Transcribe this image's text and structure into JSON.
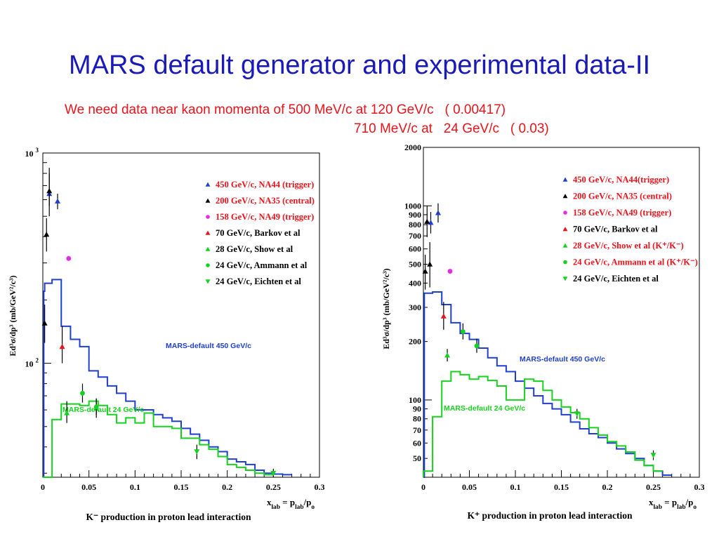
{
  "slide": {
    "title": "MARS default generator  and experimental data-II",
    "note_line1": "We need data near kaon momenta of 500 MeV/c at 120 GeV/c   ( 0.00417)",
    "note_line2": "710 MeV/c at   24 GeV/c   ( 0.03)"
  },
  "chart_data": [
    {
      "type": "scatter",
      "title": "K⁻ production in proton lead interaction",
      "xlabel": "x_lab = p_lab/p_o",
      "ylabel": "Ed³σ/dp³  (mb/GeV²/c³)",
      "xlim": [
        0,
        0.3
      ],
      "ylim": [
        28.7,
        1000
      ],
      "log_y": true,
      "x_ticks": [
        "0",
        "0.05",
        "0.1",
        "0.15",
        "0.2",
        "0.25",
        "0.3"
      ],
      "y_ticks": [
        {
          "value": 1000,
          "base": "10",
          "exp": "3"
        },
        {
          "value": 100,
          "base": "10",
          "exp": "2"
        }
      ],
      "legend_position": "top-right",
      "legend": [
        {
          "label": "450 GeV/c, NA44 (trigger)",
          "color": "#1f3fd0",
          "marker": "triangle-up",
          "text_color": "#e8131b"
        },
        {
          "label": "200 GeV/c, NA35 (central)",
          "color": "#000000",
          "marker": "triangle-up",
          "text_color": "#e8131b"
        },
        {
          "label": "158 GeV/c, NA49 (trigger)",
          "color": "#e22be2",
          "marker": "circle",
          "text_color": "#e8131b"
        },
        {
          "label": "70 GeV/c, Barkov et al",
          "color": "#e8131b",
          "marker": "triangle-up",
          "text_color": "#000000"
        },
        {
          "label": "28 GeV/c, Show et al",
          "color": "#16d21e",
          "marker": "triangle-up",
          "text_color": "#000000"
        },
        {
          "label": "24 GeV/c, Ammann et al",
          "color": "#16d21e",
          "marker": "circle",
          "text_color": "#000000"
        },
        {
          "label": "24 GeV/c, Eichten et al",
          "color": "#16d21e",
          "marker": "triangle-down",
          "text_color": "#000000"
        }
      ],
      "series": [
        {
          "name": "450 GeV/c, NA44 (trigger)",
          "color": "#1f3fd0",
          "marker": "triangle-up",
          "points": [
            {
              "x": 0.007,
              "y": 640,
              "lo": 500,
              "hi": 850
            },
            {
              "x": 0.016,
              "y": 590,
              "lo": 540,
              "hi": 640
            }
          ]
        },
        {
          "name": "200 GeV/c, NA35 (central)",
          "color": "#000000",
          "marker": "triangle-up",
          "points": [
            {
              "x": 0.002,
              "y": 155,
              "lo": 125,
              "hi": 190
            },
            {
              "x": 0.004,
              "y": 410,
              "lo": 340,
              "hi": 490
            },
            {
              "x": 0.007,
              "y": 660,
              "lo": 560,
              "hi": 800
            }
          ]
        },
        {
          "name": "158 GeV/c, NA49 (trigger)",
          "color": "#e22be2",
          "marker": "circle",
          "points": [
            {
              "x": 0.028,
              "y": 315
            }
          ]
        },
        {
          "name": "70 GeV/c, Barkov et al",
          "color": "#e8131b",
          "marker": "triangle-up",
          "points": [
            {
              "x": 0.021,
              "y": 120,
              "lo": 100,
              "hi": 150
            }
          ]
        },
        {
          "name": "28 GeV/c, Show et al",
          "color": "#16d21e",
          "marker": "triangle-up",
          "points": [
            {
              "x": 0.026,
              "y": 58,
              "lo": 52,
              "hi": 66
            },
            {
              "x": 0.058,
              "y": 61,
              "lo": 55,
              "hi": 68
            }
          ]
        },
        {
          "name": "24 GeV/c, Ammann et al",
          "color": "#16d21e",
          "marker": "circle",
          "points": [
            {
              "x": 0.043,
              "y": 72,
              "lo": 65,
              "hi": 80
            },
            {
              "x": 0.058,
              "y": 62,
              "lo": 57,
              "hi": 68
            }
          ]
        },
        {
          "name": "24 GeV/c, Eichten et al",
          "color": "#16d21e",
          "marker": "triangle-down",
          "points": [
            {
              "x": 0.167,
              "y": 38,
              "lo": 35,
              "hi": 41
            },
            {
              "x": 0.25,
              "y": 30,
              "lo": 28.9,
              "hi": 31.5
            }
          ]
        }
      ],
      "curves": [
        {
          "name": "MARS-default 450 GeV/c",
          "label": "MARS-default 450 GeV/c",
          "color": "#1f3fd0",
          "edges": [
            0,
            0.001,
            0.002,
            0.01,
            0.02,
            0.03,
            0.04,
            0.05,
            0.06,
            0.07,
            0.08,
            0.09,
            0.1,
            0.11,
            0.12,
            0.13,
            0.14,
            0.15,
            0.16,
            0.17,
            0.18,
            0.19,
            0.2,
            0.21,
            0.22,
            0.23,
            0.24,
            0.25,
            0.26,
            0.27
          ],
          "values": [
            28.7,
            220,
            240,
            250,
            150,
            130,
            120,
            92,
            86,
            78,
            72,
            66,
            60,
            60,
            57,
            55,
            53,
            49,
            46,
            43,
            40,
            38,
            35,
            34,
            33,
            31,
            30,
            29.7,
            29.5
          ]
        },
        {
          "name": "MARS-default 24 GeV/c",
          "label": "MARS-default 24 GeV/c",
          "color": "#16d21e",
          "edges": [
            0,
            0.01,
            0.02,
            0.03,
            0.04,
            0.05,
            0.06,
            0.07,
            0.08,
            0.09,
            0.1,
            0.11,
            0.12,
            0.13,
            0.14,
            0.15,
            0.16,
            0.17,
            0.18,
            0.19,
            0.2,
            0.21,
            0.22,
            0.23,
            0.24,
            0.25
          ],
          "values": [
            28.7,
            54,
            64,
            64,
            63,
            66,
            63,
            57,
            52,
            55,
            52,
            58,
            50,
            50,
            49,
            44,
            44,
            41,
            39,
            36,
            33,
            32,
            31,
            30,
            29.5
          ]
        }
      ]
    },
    {
      "type": "scatter",
      "title": "K⁺ production in proton lead interaction",
      "xlabel": "x_lab = p_lab/p_o",
      "ylabel": "Ed³σ/dp³  (mb/GeV²/c³)",
      "xlim": [
        0,
        0.3
      ],
      "ylim": [
        40,
        2000
      ],
      "log_y": true,
      "x_ticks": [
        "0",
        "0.05",
        "0.1",
        "0.15",
        "0.2",
        "0.25",
        "0.3"
      ],
      "y_ticks": [
        {
          "value": 2000,
          "label": "2000"
        },
        {
          "value": 1000,
          "label": "1000"
        },
        {
          "value": 900,
          "label": "900"
        },
        {
          "value": 800,
          "label": "800"
        },
        {
          "value": 700,
          "label": "700"
        },
        {
          "value": 600,
          "label": "600"
        },
        {
          "value": 500,
          "label": "500"
        },
        {
          "value": 400,
          "label": "400"
        },
        {
          "value": 300,
          "label": "300"
        },
        {
          "value": 200,
          "label": "200"
        },
        {
          "value": 100,
          "label": "100"
        },
        {
          "value": 90,
          "label": "90"
        },
        {
          "value": 80,
          "label": "80"
        },
        {
          "value": 70,
          "label": "70"
        },
        {
          "value": 60,
          "label": "60"
        },
        {
          "value": 50,
          "label": "50"
        }
      ],
      "legend_position": "top-right",
      "legend": [
        {
          "label": "450 GeV/c, NA44(trigger)",
          "color": "#1f3fd0",
          "marker": "triangle-up",
          "text_color": "#e8131b"
        },
        {
          "label": "200 GeV/c, NA35 (central)",
          "color": "#000000",
          "marker": "triangle-up",
          "text_color": "#e8131b"
        },
        {
          "label": "158 GeV/c, NA49 (trigger)",
          "color": "#e22be2",
          "marker": "circle",
          "text_color": "#e8131b"
        },
        {
          "label": "70 GeV/c, Barkov et al",
          "color": "#e8131b",
          "marker": "triangle-up",
          "text_color": "#000000"
        },
        {
          "label": "28 GeV/c, Show et al (K⁺/K⁻)",
          "color": "#16d21e",
          "marker": "triangle-up",
          "text_color": "#e8131b"
        },
        {
          "label": "24 GeV/c, Ammann et al (K⁺/K⁻)",
          "color": "#16d21e",
          "marker": "circle",
          "text_color": "#e8131b"
        },
        {
          "label": "24 GeV/c, Eichten et al",
          "color": "#16d21e",
          "marker": "triangle-down",
          "text_color": "#000000"
        }
      ],
      "series": [
        {
          "name": "450 GeV/c, NA44(trigger)",
          "color": "#1f3fd0",
          "marker": "triangle-up",
          "points": [
            {
              "x": 0.008,
              "y": 820,
              "lo": 720,
              "hi": 930
            },
            {
              "x": 0.016,
              "y": 920,
              "lo": 820,
              "hi": 1030
            }
          ]
        },
        {
          "name": "200 GeV/c, NA35 (central)",
          "color": "#000000",
          "marker": "triangle-up",
          "points": [
            {
              "x": 0.002,
              "y": 460,
              "lo": 370,
              "hi": 560
            },
            {
              "x": 0.004,
              "y": 830,
              "lo": 690,
              "hi": 1000
            },
            {
              "x": 0.007,
              "y": 500,
              "lo": 380,
              "hi": 650
            }
          ]
        },
        {
          "name": "158 GeV/c, NA49 (trigger)",
          "color": "#e22be2",
          "marker": "circle",
          "points": [
            {
              "x": 0.029,
              "y": 460
            }
          ]
        },
        {
          "name": "70 GeV/c, Barkov et al",
          "color": "#e8131b",
          "marker": "triangle-up",
          "points": [
            {
              "x": 0.022,
              "y": 270,
              "lo": 230,
              "hi": 320
            }
          ]
        },
        {
          "name": "28 GeV/c, Show et al (K⁺/K⁻)",
          "color": "#16d21e",
          "marker": "triangle-up",
          "points": [
            {
              "x": 0.026,
              "y": 170,
              "lo": 158,
              "hi": 183
            }
          ]
        },
        {
          "name": "24 GeV/c, Ammann et al (K⁺/K⁻)",
          "color": "#16d21e",
          "marker": "circle",
          "points": [
            {
              "x": 0.043,
              "y": 225,
              "lo": 205,
              "hi": 248
            },
            {
              "x": 0.058,
              "y": 190,
              "lo": 175,
              "hi": 207
            }
          ]
        },
        {
          "name": "24 GeV/c, Eichten et al",
          "color": "#16d21e",
          "marker": "triangle-down",
          "points": [
            {
              "x": 0.167,
              "y": 85,
              "lo": 80,
              "hi": 90
            },
            {
              "x": 0.25,
              "y": 52,
              "lo": 49,
              "hi": 55
            }
          ]
        }
      ],
      "curves": [
        {
          "name": "MARS-default 450 GeV/c",
          "label": "MARS-default 450 GeV/c",
          "color": "#1f3fd0",
          "edges": [
            0,
            0.001,
            0.01,
            0.02,
            0.03,
            0.04,
            0.05,
            0.06,
            0.07,
            0.08,
            0.09,
            0.1,
            0.11,
            0.12,
            0.13,
            0.14,
            0.15,
            0.16,
            0.17,
            0.18,
            0.19,
            0.2,
            0.21,
            0.22,
            0.23,
            0.24,
            0.25,
            0.26
          ],
          "values": [
            40,
            355,
            360,
            310,
            250,
            220,
            205,
            185,
            165,
            150,
            140,
            125,
            115,
            105,
            96,
            90,
            84,
            77,
            71,
            67,
            64,
            60,
            56,
            53,
            50,
            46,
            43,
            41
          ]
        },
        {
          "name": "MARS-default 24 GeV/c",
          "label": "MARS-default 24 GeV/c",
          "color": "#16d21e",
          "edges": [
            0,
            0.01,
            0.02,
            0.03,
            0.04,
            0.05,
            0.06,
            0.07,
            0.08,
            0.09,
            0.1,
            0.11,
            0.12,
            0.13,
            0.14,
            0.15,
            0.16,
            0.17,
            0.18,
            0.19,
            0.2,
            0.21,
            0.22,
            0.23,
            0.24,
            0.25
          ],
          "values": [
            43,
            82,
            125,
            140,
            135,
            128,
            132,
            126,
            118,
            100,
            100,
            128,
            125,
            112,
            100,
            92,
            86,
            80,
            72,
            66,
            61,
            58,
            54,
            49,
            46,
            43
          ]
        }
      ]
    }
  ]
}
